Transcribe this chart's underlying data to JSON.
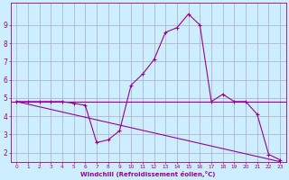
{
  "xlabel": "Windchill (Refroidissement éolien,°C)",
  "bg_color": "#cceeff",
  "grid_color": "#aaaacc",
  "line_color": "#990099",
  "x_values": [
    0,
    1,
    2,
    3,
    4,
    5,
    6,
    7,
    8,
    9,
    10,
    11,
    12,
    13,
    14,
    15,
    16,
    17,
    18,
    19,
    20,
    21,
    22,
    23
  ],
  "y_curve": [
    4.8,
    4.8,
    4.8,
    4.8,
    4.8,
    4.7,
    4.6,
    2.55,
    2.7,
    3.2,
    5.7,
    6.3,
    7.1,
    8.6,
    8.85,
    9.6,
    9.0,
    4.8,
    5.2,
    4.8,
    4.8,
    4.1,
    1.9,
    1.6
  ],
  "y_linear_start": 4.8,
  "y_linear_end": 1.5,
  "y_horiz": 4.8,
  "ylim": [
    1.5,
    10.2
  ],
  "xlim": [
    -0.5,
    23.5
  ],
  "yticks": [
    2,
    3,
    4,
    5,
    6,
    7,
    8,
    9
  ],
  "xticks": [
    0,
    1,
    2,
    3,
    4,
    5,
    6,
    7,
    8,
    9,
    10,
    11,
    12,
    13,
    14,
    15,
    16,
    17,
    18,
    19,
    20,
    21,
    22,
    23
  ]
}
